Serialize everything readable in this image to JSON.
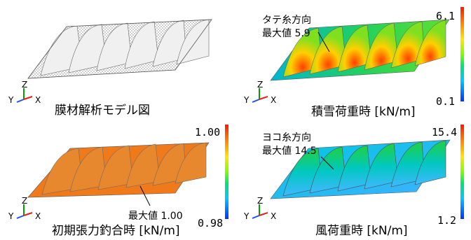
{
  "panels": {
    "model": {
      "caption": "膜材解析モデル図"
    },
    "snow": {
      "caption": "積雪荷重時 [kN/m]",
      "note_direction": "タテ糸方向",
      "note_max": "最大値 5.9",
      "scale_max": "6.1",
      "scale_min": "0.1"
    },
    "initial": {
      "caption": "初期張力釣合時 [kN/m]",
      "note_max": "最大値 1.00",
      "scale_max": "1.00",
      "scale_min": "0.98"
    },
    "wind": {
      "caption": "風荷重時 [kN/m]",
      "note_direction": "ヨコ糸方向",
      "note_max": "最大値 14.5",
      "scale_max": "15.4",
      "scale_min": "1.2"
    }
  },
  "axes": {
    "z": "Z",
    "y": "Y",
    "x": "X"
  },
  "colors": {
    "axis_z": "#00a000",
    "axis_y": "#2050ff",
    "axis_x": "#e02020",
    "initial_fill": "#f07a1a"
  }
}
